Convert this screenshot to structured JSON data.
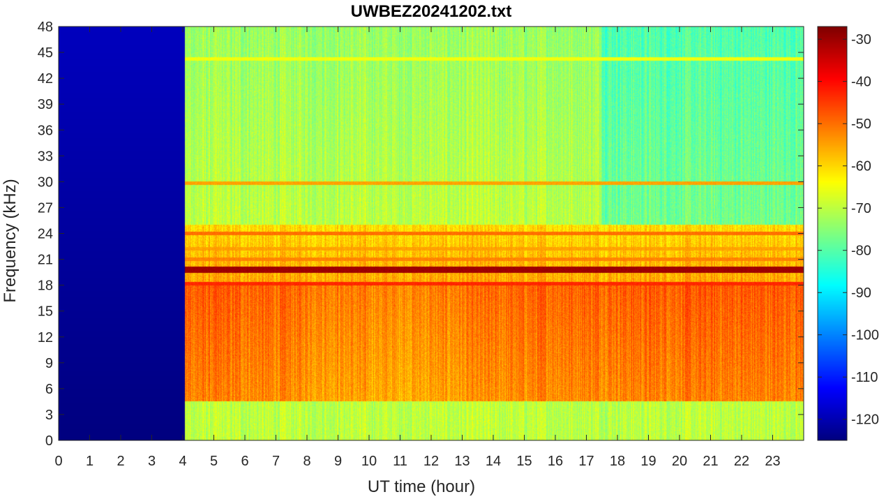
{
  "chart_data": {
    "type": "heatmap",
    "title": "UWBEZ20241202.txt",
    "xlabel": "UT time (hour)",
    "ylabel": "Frequency (kHz)",
    "xlim": [
      0,
      24
    ],
    "ylim": [
      0,
      48
    ],
    "x_ticks": [
      0,
      1,
      2,
      3,
      4,
      5,
      6,
      7,
      8,
      9,
      10,
      11,
      12,
      13,
      14,
      15,
      16,
      17,
      18,
      19,
      20,
      21,
      22,
      23
    ],
    "y_ticks": [
      0,
      3,
      6,
      9,
      12,
      15,
      18,
      21,
      24,
      27,
      30,
      33,
      36,
      39,
      42,
      45,
      48
    ],
    "colorbar": {
      "colormap": "jet",
      "clim": [
        -125,
        -27
      ],
      "ticks": [
        -30,
        -40,
        -50,
        -60,
        -70,
        -80,
        -90,
        -100,
        -110,
        -120
      ]
    },
    "no_data_interval_hours": [
      0,
      4.05
    ],
    "features": {
      "narrowband_lines_khz": [
        {
          "freq": 19.8,
          "level_db": -30
        },
        {
          "freq": 18.2,
          "level_db": -43
        },
        {
          "freq": 24.0,
          "level_db": -50
        },
        {
          "freq": 21.0,
          "level_db": -52
        },
        {
          "freq": 22.2,
          "level_db": -55
        },
        {
          "freq": 44.3,
          "level_db": -65
        },
        {
          "freq": 29.8,
          "level_db": -55
        }
      ],
      "background_level_db": {
        "below_5_khz": -70,
        "5_to_18_khz": -50,
        "18_to_25_khz": -55,
        "25_to_48_khz": -70,
        "no_data": -122
      }
    }
  }
}
